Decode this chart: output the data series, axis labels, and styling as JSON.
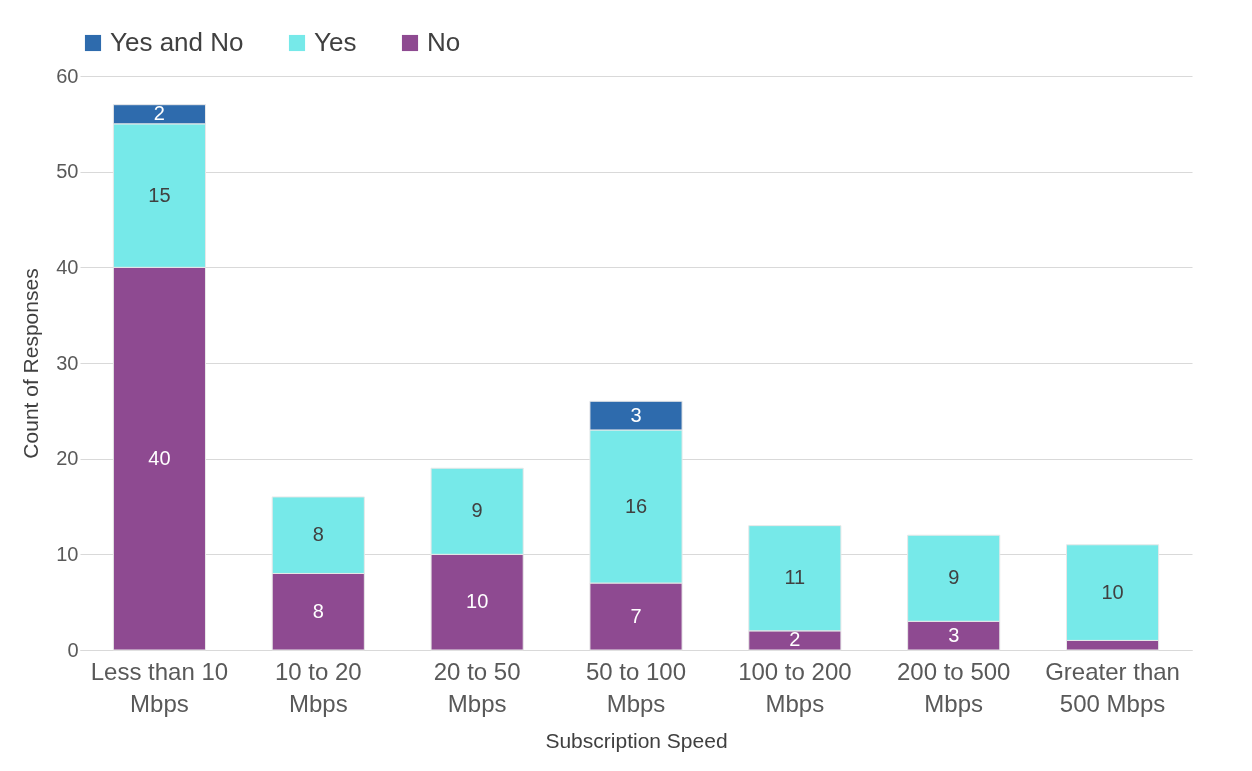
{
  "chart_data": {
    "type": "bar",
    "stacked": true,
    "categories": [
      "Less than 10 Mbps",
      "10 to 20 Mbps",
      "20 to 50 Mbps",
      "50 to 100 Mbps",
      "100 to 200 Mbps",
      "200 to 500 Mbps",
      "Greater than 500 Mbps"
    ],
    "series": [
      {
        "name": "No",
        "color": "#8e4a91",
        "values": [
          40,
          8,
          10,
          7,
          2,
          3,
          1
        ],
        "value_labels": [
          "40",
          "8",
          "10",
          "7",
          "2",
          "3",
          null
        ]
      },
      {
        "name": "Yes",
        "color": "#76e9e9",
        "values": [
          15,
          8,
          9,
          16,
          11,
          9,
          10
        ],
        "value_labels": [
          "15",
          "8",
          "9",
          "16",
          "11",
          "9",
          "10"
        ]
      },
      {
        "name": "Yes and No",
        "color": "#2e6bad",
        "values": [
          2,
          null,
          null,
          3,
          null,
          null,
          null
        ],
        "value_labels": [
          "2",
          null,
          null,
          "3",
          null,
          null,
          null
        ]
      }
    ],
    "xlabel": "Subscription Speed",
    "ylabel": "Count of Responses",
    "ylim": [
      0,
      60
    ],
    "yticks": [
      0,
      10,
      20,
      30,
      40,
      50,
      60
    ],
    "grid": "y",
    "legend": "top"
  }
}
